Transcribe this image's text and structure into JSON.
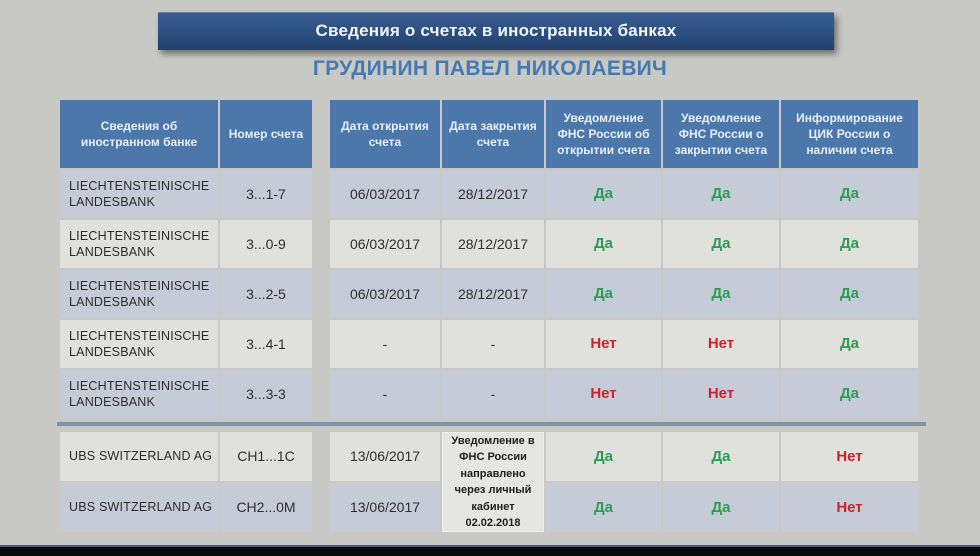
{
  "title_banner": "Сведения о счетах в иностранных банках",
  "person_name": "ГРУДИНИН ПАВЕЛ НИКОЛАЕВИЧ",
  "colors": {
    "banner_blue": "#2c4e80",
    "header_blue": "#4b77ab",
    "name_blue": "#4678b1",
    "row_dark": "#c6ccd7",
    "row_light": "#e0e0dd",
    "status_yes_green": "#2a9d52",
    "status_no_red": "#c8232e"
  },
  "table": {
    "headers": {
      "bank": "Сведения об иностранном банке",
      "account": "Номер счета",
      "open_date": "Дата открытия счета",
      "close_date": "Дата закрытия счета",
      "fns_open": "Уведомление ФНС России об открытии счета",
      "fns_close": "Уведомление ФНС России о закрытии счета",
      "cik": "Информирование ЦИК России о наличии счета"
    },
    "rows": [
      {
        "bank": "LIECHTENSTEINISCHE LANDESBANK",
        "account": "3...1-7",
        "open_date": "06/03/2017",
        "close_date": "28/12/2017",
        "fns_open": {
          "label": "Да",
          "status": "yes"
        },
        "fns_close": {
          "label": "Да",
          "status": "yes"
        },
        "cik": {
          "label": "Да",
          "status": "yes"
        }
      },
      {
        "bank": "LIECHTENSTEINISCHE LANDESBANK",
        "account": "3...0-9",
        "open_date": "06/03/2017",
        "close_date": "28/12/2017",
        "fns_open": {
          "label": "Да",
          "status": "yes"
        },
        "fns_close": {
          "label": "Да",
          "status": "yes"
        },
        "cik": {
          "label": "Да",
          "status": "yes"
        }
      },
      {
        "bank": "LIECHTENSTEINISCHE LANDESBANK",
        "account": "3...2-5",
        "open_date": "06/03/2017",
        "close_date": "28/12/2017",
        "fns_open": {
          "label": "Да",
          "status": "yes"
        },
        "fns_close": {
          "label": "Да",
          "status": "yes"
        },
        "cik": {
          "label": "Да",
          "status": "yes"
        }
      },
      {
        "bank": "LIECHTENSTEINISCHE LANDESBANK",
        "account": "3...4-1",
        "open_date": "-",
        "close_date": "-",
        "fns_open": {
          "label": "Нет",
          "status": "no"
        },
        "fns_close": {
          "label": "Нет",
          "status": "no"
        },
        "cik": {
          "label": "Да",
          "status": "yes"
        }
      },
      {
        "bank": "LIECHTENSTEINISCHE LANDESBANK",
        "account": "3...3-3",
        "open_date": "-",
        "close_date": "-",
        "fns_open": {
          "label": "Нет",
          "status": "no"
        },
        "fns_close": {
          "label": "Нет",
          "status": "no"
        },
        "cik": {
          "label": "Да",
          "status": "yes"
        }
      }
    ]
  },
  "ubs": {
    "note": "Уведомление в ФНС России направлено через личный кабинет 02.02.2018",
    "rows": [
      {
        "bank": "UBS  SWITZERLAND  AG",
        "account": "CH1...1C",
        "open_date": "13/06/2017",
        "fns_open": {
          "label": "Да",
          "status": "yes"
        },
        "fns_close": {
          "label": "Да",
          "status": "yes"
        },
        "cik": {
          "label": "Нет",
          "status": "no"
        }
      },
      {
        "bank": "UBS  SWITZERLAND  AG",
        "account": "CH2...0M",
        "open_date": "13/06/2017",
        "fns_open": {
          "label": "Да",
          "status": "yes"
        },
        "fns_close": {
          "label": "Да",
          "status": "yes"
        },
        "cik": {
          "label": "Нет",
          "status": "no"
        }
      }
    ]
  }
}
